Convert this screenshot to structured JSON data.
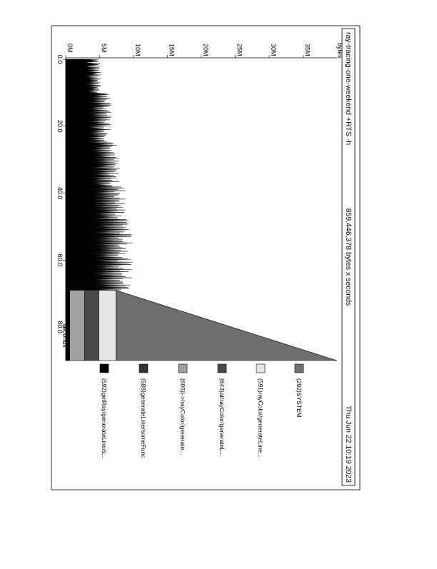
{
  "header": {
    "title": "ray-tracing-one-weekend +RTS -h",
    "total": "859,446,378 bytes x seconds",
    "date": "Thu Jun 22 10:19 2023"
  },
  "chart_data": {
    "type": "area",
    "ylabel": "bytes",
    "xlabel": "seconds",
    "xlim": [
      0,
      90
    ],
    "ylim": [
      0,
      40000000
    ],
    "x_ticks": [
      0,
      20,
      40,
      60,
      80
    ],
    "x_tick_labels": [
      "0.0",
      "20.0",
      "40.0",
      "60.0",
      "80.0"
    ],
    "y_ticks": [
      0,
      5000000,
      10000000,
      15000000,
      20000000,
      25000000,
      30000000,
      35000000
    ],
    "y_tick_labels": [
      "0M",
      "5M",
      "10M",
      "15M",
      "20M",
      "25M",
      "30M",
      "35M"
    ],
    "legend": [
      {
        "label": "(292)SYSTEM",
        "color": "#6e6e6e"
      },
      {
        "label": "(591)rayColor/generateLine...",
        "color": "#e6e6e6"
      },
      {
        "label": "(643)at/rayColor/generateL...",
        "color": "#4a4a4a"
      },
      {
        "label": "(605)|->/rayColor/generate...",
        "color": "#a0a0a0"
      },
      {
        "label": "(588)generateLine/someFunc",
        "color": "#333333"
      },
      {
        "label": "(592)getRay/generateLine/s...",
        "color": "#000000"
      }
    ],
    "series_segments": [
      {
        "x_start": 0,
        "x_end": 10,
        "base": 3800000,
        "amp": 1400000
      },
      {
        "x_start": 10,
        "x_end": 25,
        "base": 4000000,
        "amp": 2800000
      },
      {
        "x_start": 25,
        "x_end": 38,
        "base": 4400000,
        "amp": 3600000
      },
      {
        "x_start": 38,
        "x_end": 48,
        "base": 4700000,
        "amp": 4300000
      },
      {
        "x_start": 48,
        "x_end": 69,
        "base": 4900000,
        "amp": 5000000
      }
    ],
    "final_band_x_start": 69,
    "final_band_x_end": 90,
    "final_band_stack": [
      {
        "name": "(592)getRay/generateLine/s...",
        "value": 600000
      },
      {
        "name": "(605)|->/rayColor/generate...",
        "value": 2200000
      },
      {
        "name": "(643)at/rayColor/generateL...",
        "value": 2100000
      },
      {
        "name": "(591)rayColor/generateLine...",
        "value": 2500000
      },
      {
        "name": "(292)SYSTEM",
        "value": 0
      }
    ],
    "system_peak": {
      "x": 69,
      "y": 7400000,
      "x_end": 90,
      "y_end": 42000000
    }
  }
}
